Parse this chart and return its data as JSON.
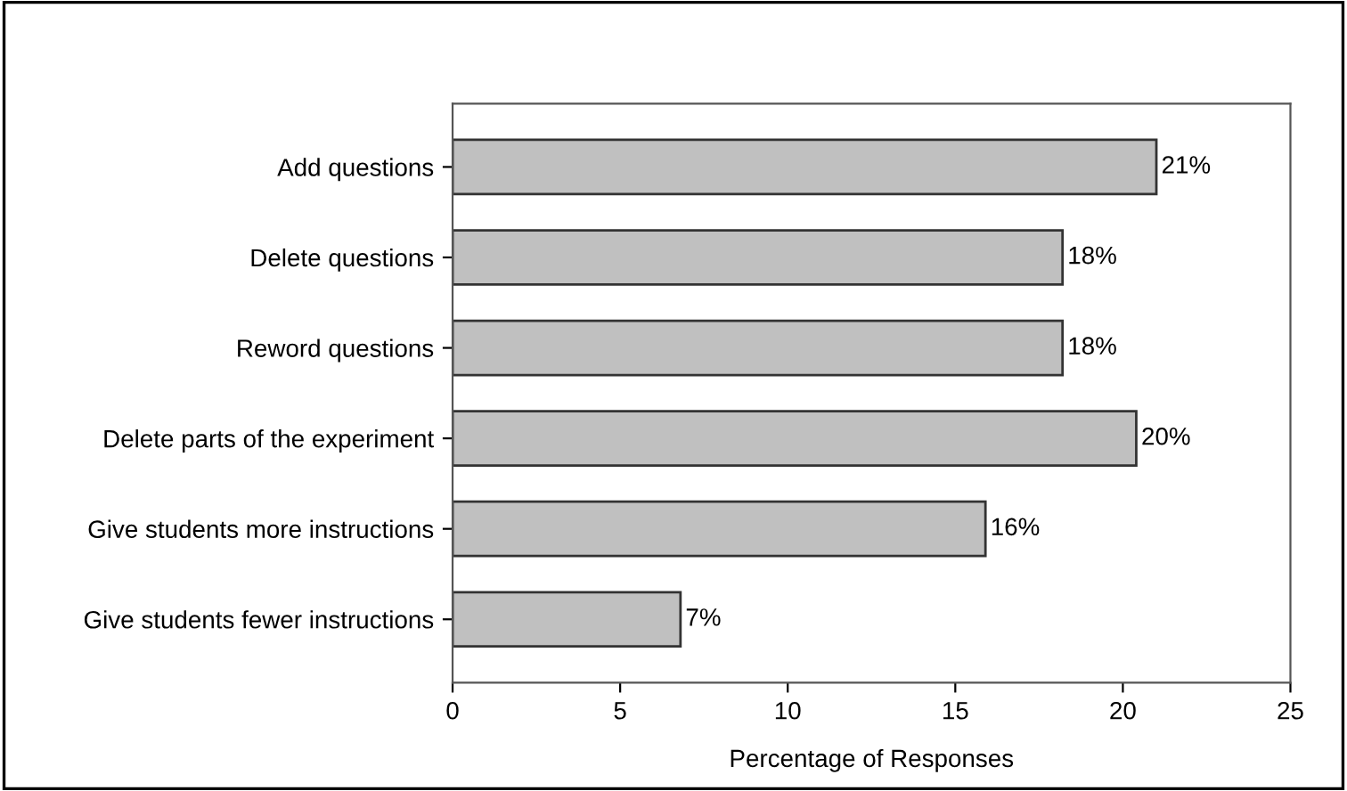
{
  "chart_data": {
    "type": "bar",
    "orientation": "horizontal",
    "xlabel": "Percentage of Responses",
    "categories": [
      "Add questions",
      "Delete questions",
      "Reword questions",
      "Delete parts of the experiment",
      "Give students more instructions",
      "Give students fewer instructions"
    ],
    "values": [
      21,
      18.2,
      18.2,
      20.4,
      15.9,
      6.8
    ],
    "value_labels": [
      "21%",
      "18%",
      "18%",
      "20%",
      "16%",
      "7%"
    ],
    "color": "#c0c0c0",
    "xlim": [
      0,
      25
    ],
    "xticks": [
      0,
      5,
      10,
      15,
      20,
      25
    ],
    "grid": false
  }
}
